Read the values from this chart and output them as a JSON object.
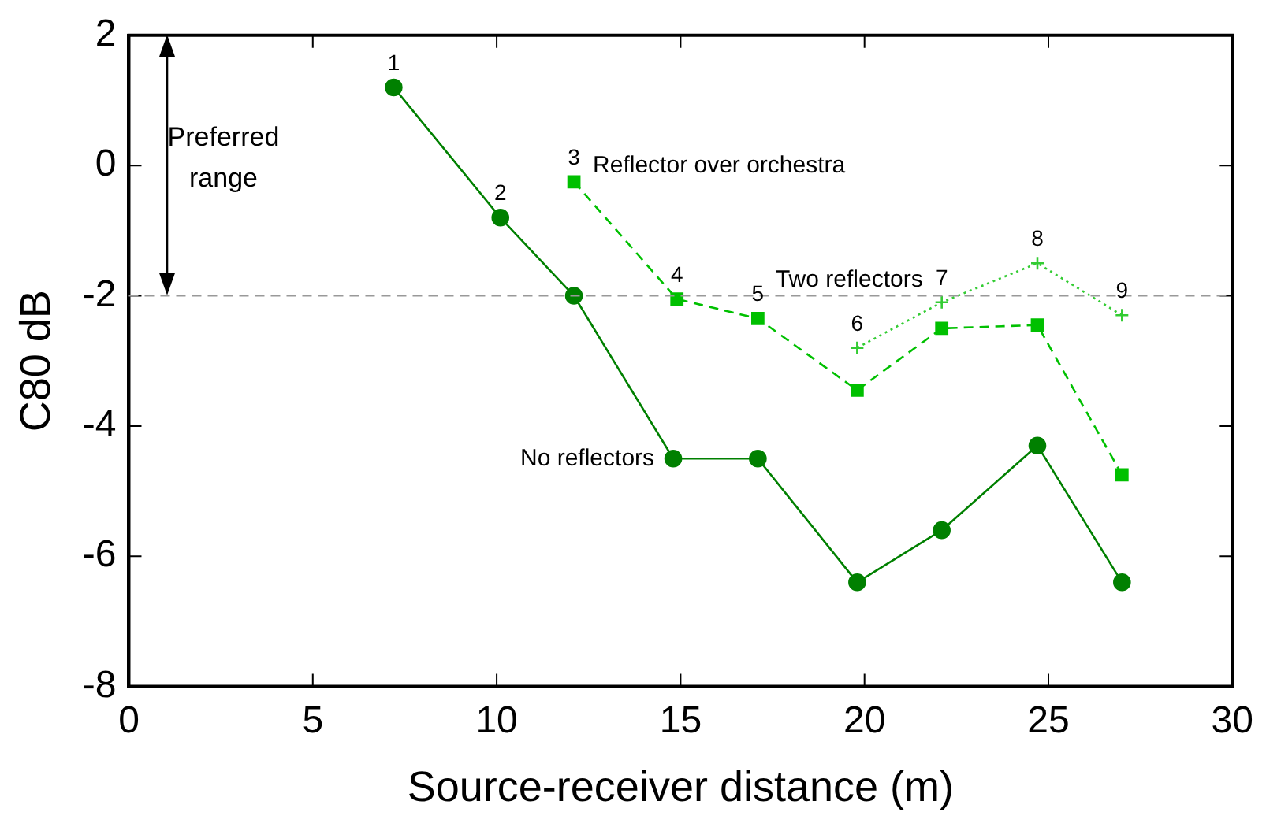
{
  "chart_data": {
    "type": "line",
    "xlabel": "Source-receiver distance (m)",
    "ylabel": "C80 dB",
    "xlim": [
      0,
      30
    ],
    "xticks": [
      0,
      5,
      10,
      15,
      20,
      25,
      30
    ],
    "ylim": [
      -8,
      2
    ],
    "yticks": [
      -8,
      -6,
      -4,
      -2,
      0,
      2
    ],
    "grid": false,
    "legend": false,
    "series": [
      {
        "name": "No reflectors",
        "color": "#008000",
        "marker": "circle",
        "line_style": "solid",
        "x": [
          7.2,
          10.1,
          12.1,
          14.8,
          17.1,
          19.8,
          22.1,
          24.7,
          27.0
        ],
        "values": [
          1.2,
          -0.8,
          -2.0,
          -4.5,
          -4.5,
          -6.4,
          -5.6,
          -4.3,
          -6.4
        ]
      },
      {
        "name": "Reflector over orchestra",
        "color": "#00c000",
        "marker": "square",
        "line_style": "dashed",
        "x": [
          12.1,
          14.9,
          17.1,
          19.8,
          22.1,
          24.7,
          27.0
        ],
        "values": [
          -0.25,
          -2.05,
          -2.35,
          -3.45,
          -2.5,
          -2.45,
          -4.75
        ]
      },
      {
        "name": "Two reflectors",
        "color": "#33cc33",
        "marker": "cross",
        "line_style": "dotted",
        "x": [
          19.8,
          22.1,
          24.7,
          27.0
        ],
        "values": [
          -2.8,
          -2.1,
          -1.5,
          -2.3
        ]
      }
    ],
    "ref_lines": [
      {
        "axis": "y",
        "value": -2,
        "color": "#999999",
        "line_style": "dashed"
      }
    ],
    "annotations": [
      "Preferred range",
      {
        "text": "1",
        "x": 7.2,
        "y": 1.2
      },
      {
        "text": "2",
        "x": 10.1,
        "y": -0.8
      },
      {
        "text": "3",
        "x": 12.1,
        "y": -0.25
      },
      {
        "text": "4",
        "x": 14.9,
        "y": -2.05
      },
      {
        "text": "5",
        "x": 17.1,
        "y": -2.35
      },
      {
        "text": "6",
        "x": 19.8,
        "y": -2.8
      },
      {
        "text": "7",
        "x": 22.1,
        "y": -2.1
      },
      {
        "text": "8",
        "x": 24.7,
        "y": -1.5
      },
      {
        "text": "9",
        "x": 27.0,
        "y": -2.3
      }
    ]
  }
}
